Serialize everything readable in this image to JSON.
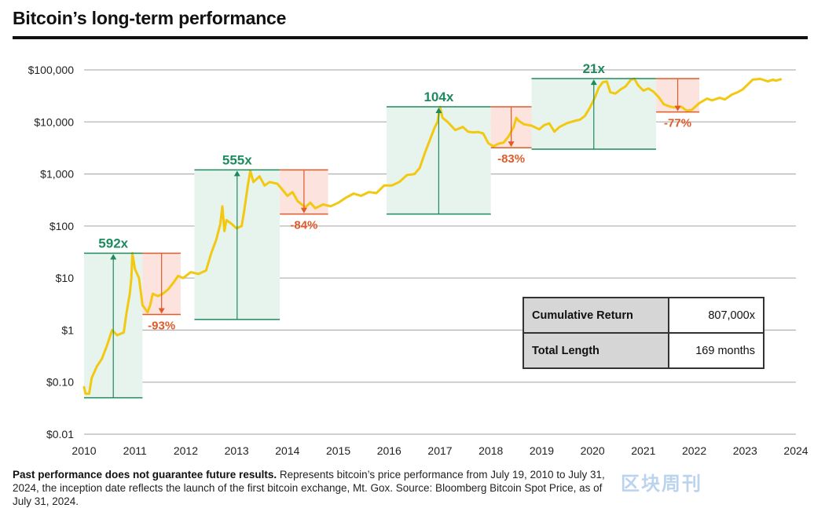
{
  "title": "Bitcoin’s long-term performance",
  "footnote": {
    "bold": "Past performance does not guarantee future results.",
    "text": " Represents bitcoin’s price performance from July 19, 2010 to July 31, 2024, the inception date reflects the launch of the first bitcoin exchange, Mt. Gox. Source: Bloomberg Bitcoin Spot Price, as of July 31, 2024."
  },
  "watermark": "区块周刊",
  "stats": {
    "cumulative_label": "Cumulative Return",
    "cumulative_value": "807,000x",
    "length_label": "Total Length",
    "length_value": "169 months"
  },
  "colors": {
    "line": "#f2c811",
    "gain": "#1e8a5e",
    "gain_fill": "#e7f4ee",
    "loss": "#e05a2a",
    "loss_fill": "#fde3dd",
    "grid": "#b5b5b5"
  },
  "chart_data": {
    "type": "line",
    "title": "Bitcoin’s long-term performance",
    "xlabel": "",
    "ylabel": "",
    "yscale": "log",
    "xlim": [
      2010,
      2024
    ],
    "ylim": [
      0.01,
      100000
    ],
    "x_ticks": [
      "2010",
      "2011",
      "2012",
      "2013",
      "2014",
      "2015",
      "2016",
      "2017",
      "2018",
      "2019",
      "2020",
      "2021",
      "2022",
      "2023",
      "2024"
    ],
    "y_ticks": [
      {
        "value": 100000,
        "label": "$100,000"
      },
      {
        "value": 10000,
        "label": "$10,000"
      },
      {
        "value": 1000,
        "label": "$1,000"
      },
      {
        "value": 100,
        "label": "$100"
      },
      {
        "value": 10,
        "label": "$10"
      },
      {
        "value": 1,
        "label": "$1"
      },
      {
        "value": 0.1,
        "label": "$0.10"
      },
      {
        "value": 0.01,
        "label": "$0.01"
      }
    ],
    "series": [
      {
        "name": "Bitcoin price",
        "points": [
          [
            2010.0,
            0.08
          ],
          [
            2010.03,
            0.06
          ],
          [
            2010.1,
            0.06
          ],
          [
            2010.15,
            0.12
          ],
          [
            2010.25,
            0.2
          ],
          [
            2010.35,
            0.28
          ],
          [
            2010.45,
            0.5
          ],
          [
            2010.55,
            1.0
          ],
          [
            2010.65,
            0.8
          ],
          [
            2010.78,
            0.9
          ],
          [
            2010.83,
            2
          ],
          [
            2010.9,
            5
          ],
          [
            2010.93,
            10
          ],
          [
            2010.95,
            30
          ],
          [
            2011.0,
            15
          ],
          [
            2011.08,
            10
          ],
          [
            2011.15,
            3
          ],
          [
            2011.25,
            2.2
          ],
          [
            2011.3,
            3
          ],
          [
            2011.35,
            5
          ],
          [
            2011.45,
            4.5
          ],
          [
            2011.55,
            5
          ],
          [
            2011.65,
            6
          ],
          [
            2011.75,
            8
          ],
          [
            2011.85,
            11
          ],
          [
            2011.95,
            10
          ],
          [
            2012.1,
            13
          ],
          [
            2012.25,
            12
          ],
          [
            2012.4,
            14
          ],
          [
            2012.5,
            30
          ],
          [
            2012.6,
            55
          ],
          [
            2012.68,
            110
          ],
          [
            2012.72,
            240
          ],
          [
            2012.76,
            80
          ],
          [
            2012.8,
            130
          ],
          [
            2012.9,
            110
          ],
          [
            2013.0,
            90
          ],
          [
            2013.1,
            100
          ],
          [
            2013.15,
            200
          ],
          [
            2013.22,
            600
          ],
          [
            2013.27,
            1150
          ],
          [
            2013.33,
            700
          ],
          [
            2013.45,
            900
          ],
          [
            2013.55,
            600
          ],
          [
            2013.65,
            700
          ],
          [
            2013.8,
            650
          ],
          [
            2013.9,
            500
          ],
          [
            2014.0,
            380
          ],
          [
            2014.1,
            450
          ],
          [
            2014.2,
            300
          ],
          [
            2014.35,
            230
          ],
          [
            2014.45,
            280
          ],
          [
            2014.55,
            220
          ],
          [
            2014.7,
            260
          ],
          [
            2014.85,
            240
          ],
          [
            2015.0,
            280
          ],
          [
            2015.15,
            350
          ],
          [
            2015.3,
            420
          ],
          [
            2015.45,
            380
          ],
          [
            2015.6,
            450
          ],
          [
            2015.75,
            430
          ],
          [
            2015.9,
            600
          ],
          [
            2016.05,
            600
          ],
          [
            2016.2,
            700
          ],
          [
            2016.35,
            950
          ],
          [
            2016.5,
            1000
          ],
          [
            2016.6,
            1300
          ],
          [
            2016.7,
            2500
          ],
          [
            2016.8,
            4500
          ],
          [
            2016.9,
            8000
          ],
          [
            2016.95,
            10000
          ],
          [
            2017.0,
            19500
          ],
          [
            2017.05,
            12000
          ],
          [
            2017.15,
            10000
          ],
          [
            2017.3,
            7000
          ],
          [
            2017.45,
            8000
          ],
          [
            2017.55,
            6500
          ],
          [
            2017.65,
            6300
          ],
          [
            2017.75,
            6400
          ],
          [
            2017.85,
            6000
          ],
          [
            2017.95,
            3900
          ],
          [
            2018.05,
            3400
          ],
          [
            2018.15,
            3800
          ],
          [
            2018.25,
            4000
          ],
          [
            2018.35,
            5300
          ],
          [
            2018.45,
            8000
          ],
          [
            2018.5,
            12000
          ],
          [
            2018.55,
            10500
          ],
          [
            2018.65,
            9000
          ],
          [
            2018.8,
            8500
          ],
          [
            2018.95,
            7200
          ],
          [
            2019.05,
            8700
          ],
          [
            2019.15,
            9400
          ],
          [
            2019.25,
            6500
          ],
          [
            2019.35,
            8000
          ],
          [
            2019.5,
            9500
          ],
          [
            2019.65,
            10500
          ],
          [
            2019.75,
            11000
          ],
          [
            2019.85,
            13000
          ],
          [
            2019.95,
            19000
          ],
          [
            2020.05,
            30000
          ],
          [
            2020.12,
            45000
          ],
          [
            2020.2,
            58000
          ],
          [
            2020.28,
            60000
          ],
          [
            2020.35,
            37000
          ],
          [
            2020.45,
            35000
          ],
          [
            2020.55,
            42000
          ],
          [
            2020.65,
            48000
          ],
          [
            2020.75,
            64000
          ],
          [
            2020.82,
            68000
          ],
          [
            2020.9,
            50000
          ],
          [
            2021.0,
            40000
          ],
          [
            2021.1,
            44000
          ],
          [
            2021.2,
            38000
          ],
          [
            2021.3,
            30000
          ],
          [
            2021.4,
            22000
          ],
          [
            2021.5,
            20000
          ],
          [
            2021.6,
            19000
          ],
          [
            2021.75,
            19500
          ],
          [
            2021.85,
            16500
          ],
          [
            2021.95,
            17000
          ],
          [
            2022.1,
            23000
          ],
          [
            2022.25,
            28000
          ],
          [
            2022.35,
            26000
          ],
          [
            2022.5,
            29000
          ],
          [
            2022.6,
            27000
          ],
          [
            2022.75,
            34000
          ],
          [
            2022.85,
            37000
          ],
          [
            2022.95,
            42000
          ],
          [
            2023.05,
            52000
          ],
          [
            2023.15,
            65000
          ],
          [
            2023.3,
            67000
          ],
          [
            2023.45,
            60000
          ],
          [
            2023.55,
            65000
          ],
          [
            2023.6,
            62000
          ],
          [
            2023.7,
            66000
          ]
        ]
      }
    ],
    "annotations": [
      {
        "kind": "gain",
        "label": "592x",
        "x0": 2010.0,
        "x1": 2011.15,
        "y_low": 0.05,
        "y_high": 30
      },
      {
        "kind": "loss",
        "label": "-93%",
        "x0": 2011.15,
        "x1": 2011.9,
        "y_low": 2.0,
        "y_high": 30
      },
      {
        "kind": "gain",
        "label": "555x",
        "x0": 2012.17,
        "x1": 2013.85,
        "y_low": 1.6,
        "y_high": 1200
      },
      {
        "kind": "loss",
        "label": "-84%",
        "x0": 2013.85,
        "x1": 2014.8,
        "y_low": 170,
        "y_high": 1200
      },
      {
        "kind": "gain",
        "label": "104x",
        "x0": 2015.95,
        "x1": 2018.0,
        "y_low": 170,
        "y_high": 19500
      },
      {
        "kind": "loss",
        "label": "-83%",
        "x0": 2018.0,
        "x1": 2018.8,
        "y_low": 3200,
        "y_high": 19500
      },
      {
        "kind": "gain",
        "label": "21x",
        "x0": 2018.8,
        "x1": 2021.25,
        "y_low": 3000,
        "y_high": 68000
      },
      {
        "kind": "loss",
        "label": "-77%",
        "x0": 2021.25,
        "x1": 2022.1,
        "y_low": 15500,
        "y_high": 68000
      }
    ]
  }
}
